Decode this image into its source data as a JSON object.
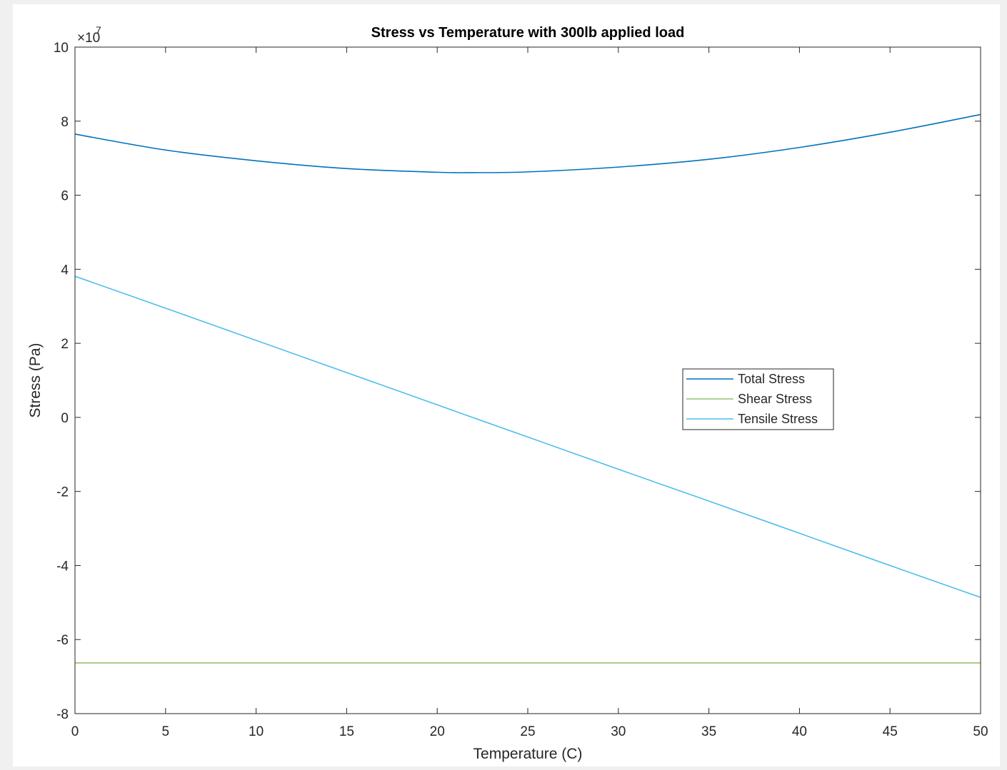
{
  "chart_data": {
    "type": "line",
    "title": "Stress vs Temperature with 300lb applied load",
    "xlabel": "Temperature (C)",
    "ylabel": "Stress (Pa)",
    "y_exponent_label": "×10",
    "y_exponent_power": "7",
    "xlim": [
      0,
      50
    ],
    "ylim": [
      -8,
      10
    ],
    "x_ticks": [
      "0",
      "5",
      "10",
      "15",
      "20",
      "25",
      "30",
      "35",
      "40",
      "45",
      "50"
    ],
    "y_ticks": [
      "-8",
      "-6",
      "-4",
      "-2",
      "0",
      "2",
      "4",
      "6",
      "8",
      "10"
    ],
    "grid": false,
    "legend_position": "center-right",
    "x": [
      0,
      5,
      10,
      15,
      20,
      22,
      25,
      30,
      35,
      40,
      45,
      50
    ],
    "series": [
      {
        "name": "Total Stress",
        "color": "#0072bd",
        "values": [
          7.65,
          7.22,
          6.93,
          6.72,
          6.62,
          6.61,
          6.63,
          6.76,
          6.97,
          7.29,
          7.7,
          8.18
        ]
      },
      {
        "name": "Shear Stress",
        "color": "#8fc471",
        "values": [
          -6.63,
          -6.63,
          -6.63,
          -6.63,
          -6.63,
          -6.63,
          -6.63,
          -6.63,
          -6.63,
          -6.63,
          -6.63,
          -6.63
        ]
      },
      {
        "name": "Tensile Stress",
        "color": "#4dbeee",
        "values": [
          3.81,
          2.95,
          2.08,
          1.21,
          0.34,
          -0.01,
          -0.53,
          -1.4,
          -2.26,
          -3.13,
          -4.0,
          -4.86
        ]
      }
    ]
  }
}
